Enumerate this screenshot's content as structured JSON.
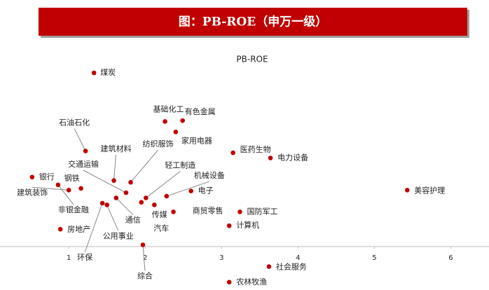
{
  "header": {
    "title": "图：PB-ROE（申万一级）"
  },
  "chart_data": {
    "type": "scatter",
    "title": "PB-ROE",
    "point_labels": [
      "煤炭",
      "基础化工",
      "有色金属",
      "家用电器",
      "石油石化",
      "医药生物",
      "电力设备",
      "纺织服饰",
      "建筑材料",
      "交通运输",
      "银行",
      "钢铁",
      "建筑装饰",
      "非银金融",
      "轻工制造",
      "机械设备",
      "电子",
      "美容护理",
      "传媒",
      "商贸零售",
      "通信",
      "环保",
      "公用事业",
      "汽车",
      "国防军工",
      "计算机",
      "房地产",
      "综合",
      "社会服务",
      "农林牧渔"
    ],
    "x": [
      1.33,
      2.26,
      2.49,
      2.4,
      1.22,
      3.15,
      3.64,
      1.81,
      1.59,
      1.75,
      0.52,
      1.16,
      1.0,
      0.86,
      2.01,
      2.28,
      2.6,
      5.43,
      1.95,
      2.37,
      1.62,
      1.44,
      1.5,
      2.12,
      3.24,
      3.1,
      0.89,
      1.97,
      3.62,
      3.1
    ],
    "series": [
      {
        "color": "#c00000",
        "values": [
          20.0,
          14.4,
          14.5,
          13.2,
          11.0,
          10.8,
          10.2,
          7.4,
          7.6,
          6.2,
          8.0,
          6.7,
          6.5,
          7.1,
          5.6,
          5.8,
          6.4,
          6.5,
          5.1,
          4.0,
          5.6,
          5.0,
          4.8,
          4.8,
          4.0,
          2.4,
          2.0,
          0.2,
          -2.3,
          -4.1
        ]
      }
    ],
    "xlim": [
      0.1,
      6.5
    ],
    "ylim": [
      -5,
      22
    ],
    "xticks": [
      1,
      2,
      3,
      4,
      5,
      6
    ]
  }
}
